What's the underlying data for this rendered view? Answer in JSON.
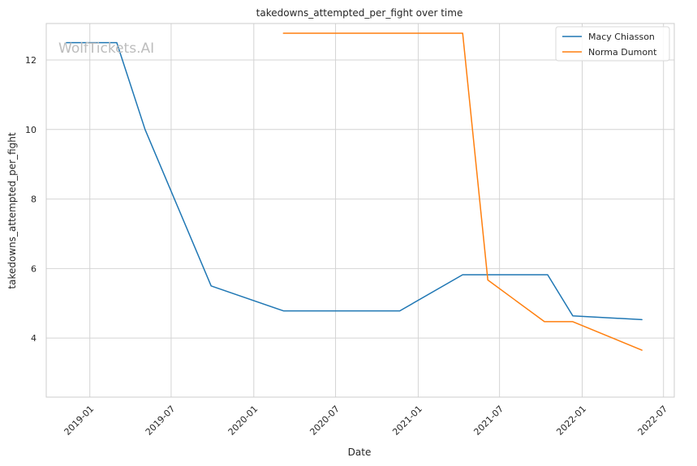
{
  "chart_data": {
    "type": "line",
    "title": "takedowns_attempted_per_fight over time",
    "xlabel": "Date",
    "ylabel": "takedowns_attempted_per_fight",
    "watermark": "WolfTickets.AI",
    "x_ticks": [
      "2019-01",
      "2019-07",
      "2020-01",
      "2020-07",
      "2021-01",
      "2021-07",
      "2022-01",
      "2022-07"
    ],
    "y_ticks": [
      4,
      6,
      8,
      10,
      12
    ],
    "xlim": [
      "2018-09-26",
      "2022-07-25"
    ],
    "ylim": [
      2.3,
      13.05
    ],
    "grid": true,
    "legend_position": "top-right",
    "series": [
      {
        "name": "Macy Chiasson",
        "color": "#1f77b4",
        "points": [
          {
            "x": "2018-11-10",
            "y": 12.5
          },
          {
            "x": "2019-03-02",
            "y": 12.5
          },
          {
            "x": "2019-05-04",
            "y": 10.0
          },
          {
            "x": "2019-09-28",
            "y": 5.5
          },
          {
            "x": "2020-03-07",
            "y": 4.78
          },
          {
            "x": "2020-11-21",
            "y": 4.78
          },
          {
            "x": "2021-04-10",
            "y": 5.82
          },
          {
            "x": "2021-10-16",
            "y": 5.82
          },
          {
            "x": "2021-12-11",
            "y": 4.64
          },
          {
            "x": "2022-05-14",
            "y": 4.53
          }
        ]
      },
      {
        "name": "Norma Dumont",
        "color": "#ff7f0e",
        "points": [
          {
            "x": "2020-03-07",
            "y": 12.77
          },
          {
            "x": "2021-04-10",
            "y": 12.77
          },
          {
            "x": "2021-06-05",
            "y": 5.67
          },
          {
            "x": "2021-10-09",
            "y": 4.47
          },
          {
            "x": "2021-12-11",
            "y": 4.47
          },
          {
            "x": "2022-05-14",
            "y": 3.65
          }
        ]
      }
    ]
  }
}
